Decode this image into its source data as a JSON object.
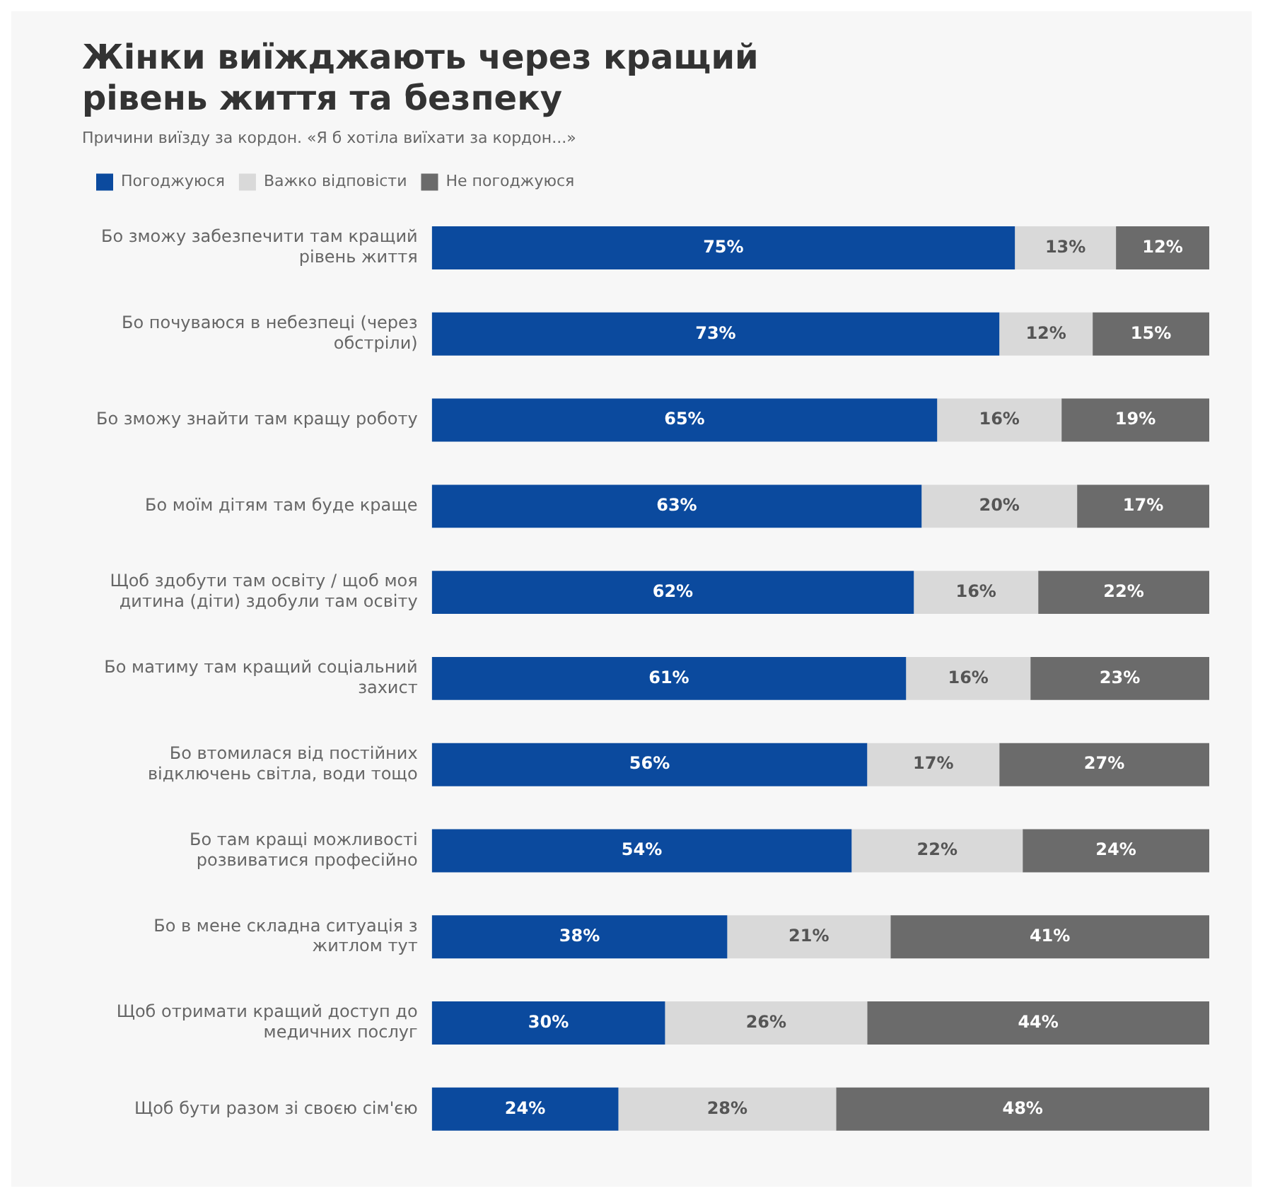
{
  "chart_data": {
    "type": "bar",
    "orientation": "horizontal",
    "stacked": true,
    "title": "Жінки виїжджають через кращий рівень життя та безпеку",
    "subtitle": "Причини виїзду за кордон. «Я б хотіла виїхати за кордон...»",
    "legend": "top left",
    "grid": false,
    "categories": [
      "Бо зможу забезпечити там кращий рівень життя",
      "Бо почуваюся в небезпеці (через обстріли)",
      "Бо зможу знайти там кращу роботу",
      "Бо моїм дітям там буде краще",
      "Щоб здобути там освіту / щоб моя дитина (діти) здобули там освіту",
      "Бо матиму там кращий соціальний захист",
      "Бо втомилася від постійних відключень світла, води тощо",
      "Бо там кращі можливості розвиватися професійно",
      "Бо в мене складна ситуація з житлом тут",
      "Щоб отримати кращий доступ до медичних послуг",
      "Щоб бути разом зі своєю сім'єю"
    ],
    "series": [
      {
        "name": "Погоджуюся",
        "color": "#0b4a9e",
        "values": [
          75,
          73,
          65,
          63,
          62,
          61,
          56,
          54,
          38,
          30,
          24
        ],
        "value_labels": [
          "75%",
          "73%",
          "65%",
          "63%",
          "62%",
          "61%",
          "56%",
          "54%",
          "38%",
          "30%",
          "24%"
        ]
      },
      {
        "name": "Важко відповісти",
        "color": "#d9d9d9",
        "values": [
          13,
          12,
          16,
          20,
          16,
          16,
          17,
          22,
          21,
          26,
          28
        ],
        "value_labels": [
          "13%",
          "12%",
          "16%",
          "20%",
          "16%",
          "16%",
          "17%",
          "22%",
          "21%",
          "26%",
          "28%"
        ]
      },
      {
        "name": "Не погоджуюся",
        "color": "#6b6b6b",
        "values": [
          12,
          15,
          19,
          17,
          22,
          23,
          27,
          24,
          41,
          44,
          48
        ],
        "value_labels": [
          "12%",
          "15%",
          "19%",
          "17%",
          "22%",
          "23%",
          "27%",
          "24%",
          "41%",
          "44%",
          "48%"
        ]
      }
    ]
  }
}
